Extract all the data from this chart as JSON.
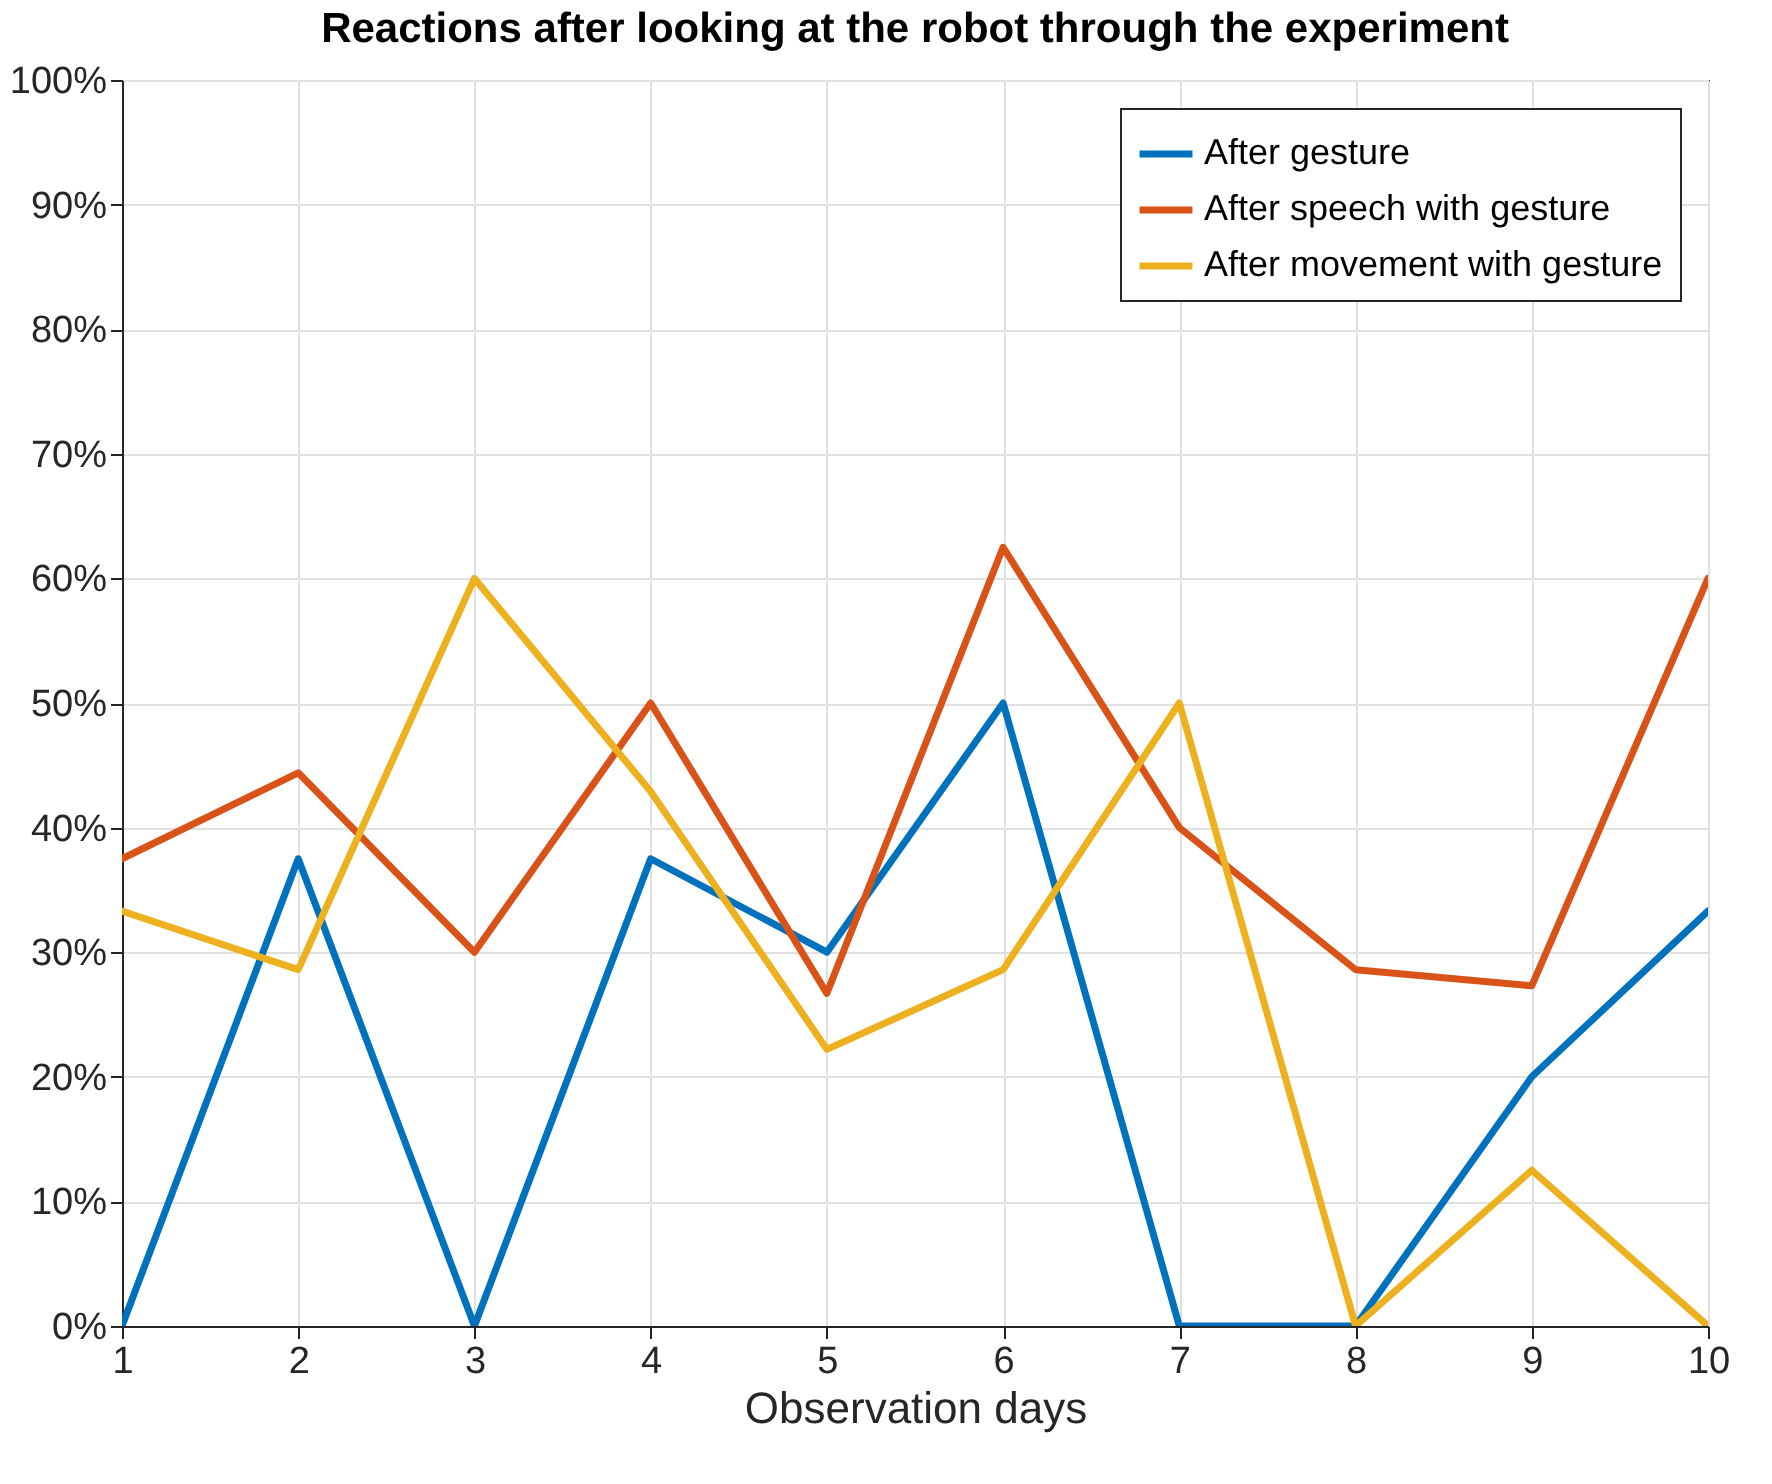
{
  "chart_data": {
    "type": "line",
    "title": "Reactions after looking at the robot through the experiment",
    "xlabel": "Observation days",
    "x": [
      1,
      2,
      3,
      4,
      5,
      6,
      7,
      8,
      9,
      10
    ],
    "series": [
      {
        "name": "After gesture",
        "color": "#0072bd",
        "values": [
          0,
          37.5,
          0,
          37.5,
          30,
          50,
          0,
          0,
          20,
          33.3
        ]
      },
      {
        "name": "After speech with gesture",
        "color": "#d95319",
        "values": [
          37.5,
          44.4,
          30,
          50,
          26.7,
          62.5,
          40,
          28.6,
          27.3,
          60
        ]
      },
      {
        "name": "After movement with gesture",
        "color": "#edb120",
        "values": [
          33.3,
          28.6,
          60,
          42.9,
          22.2,
          28.6,
          50,
          0,
          12.5,
          0
        ]
      }
    ],
    "xlim": [
      1,
      10
    ],
    "xticks": [
      1,
      2,
      3,
      4,
      5,
      6,
      7,
      8,
      9,
      10
    ],
    "ylim": [
      0,
      100
    ],
    "yticks": [
      {
        "value": 0,
        "label": "0%"
      },
      {
        "value": 10,
        "label": "10%"
      },
      {
        "value": 20,
        "label": "20%"
      },
      {
        "value": 30,
        "label": "30%"
      },
      {
        "value": 40,
        "label": "40%"
      },
      {
        "value": 50,
        "label": "50%"
      },
      {
        "value": 60,
        "label": "60%"
      },
      {
        "value": 70,
        "label": "70%"
      },
      {
        "value": 80,
        "label": "80%"
      },
      {
        "value": 90,
        "label": "90%"
      },
      {
        "value": 100,
        "label": "100%"
      }
    ],
    "grid": true,
    "legend": "top right"
  }
}
